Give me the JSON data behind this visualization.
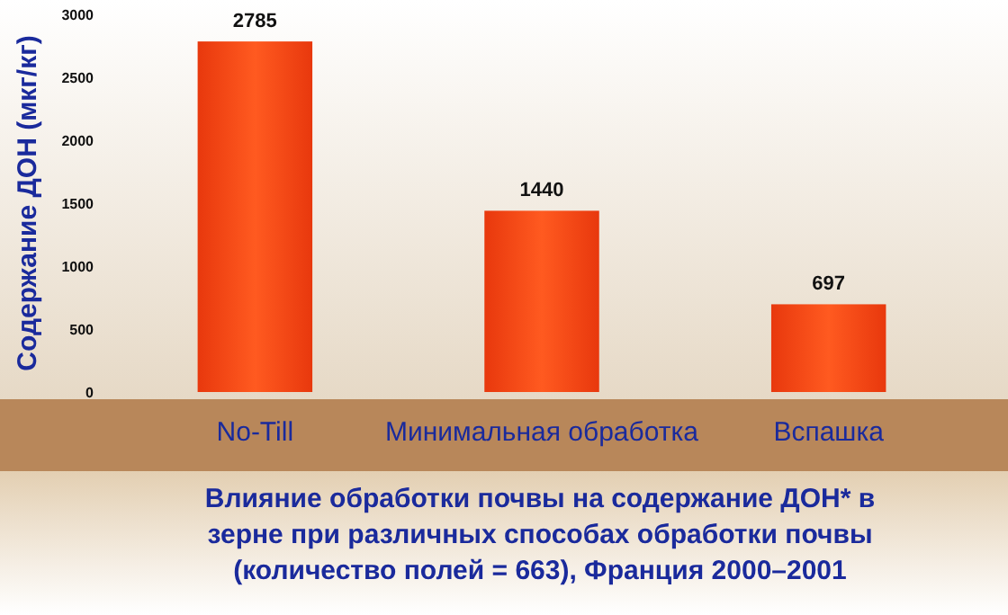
{
  "chart_data": {
    "type": "bar",
    "title": "Влияние обработки почвы на содержание ДОН* в зерне при различных способах обработки  почвы (количество полей = 663), Франция 2000–2001",
    "ylabel": "Содержание ДОН (мкг/кг)",
    "categories": [
      "No-Till",
      "Минимальная обработка",
      "Вспашка"
    ],
    "values": [
      2785,
      1440,
      697
    ],
    "color": "#e8380d",
    "ylim": [
      0,
      3000
    ],
    "yticks": [
      0,
      500,
      1000,
      1500,
      2000,
      2500,
      3000
    ],
    "grid": false,
    "data_labels": true
  }
}
